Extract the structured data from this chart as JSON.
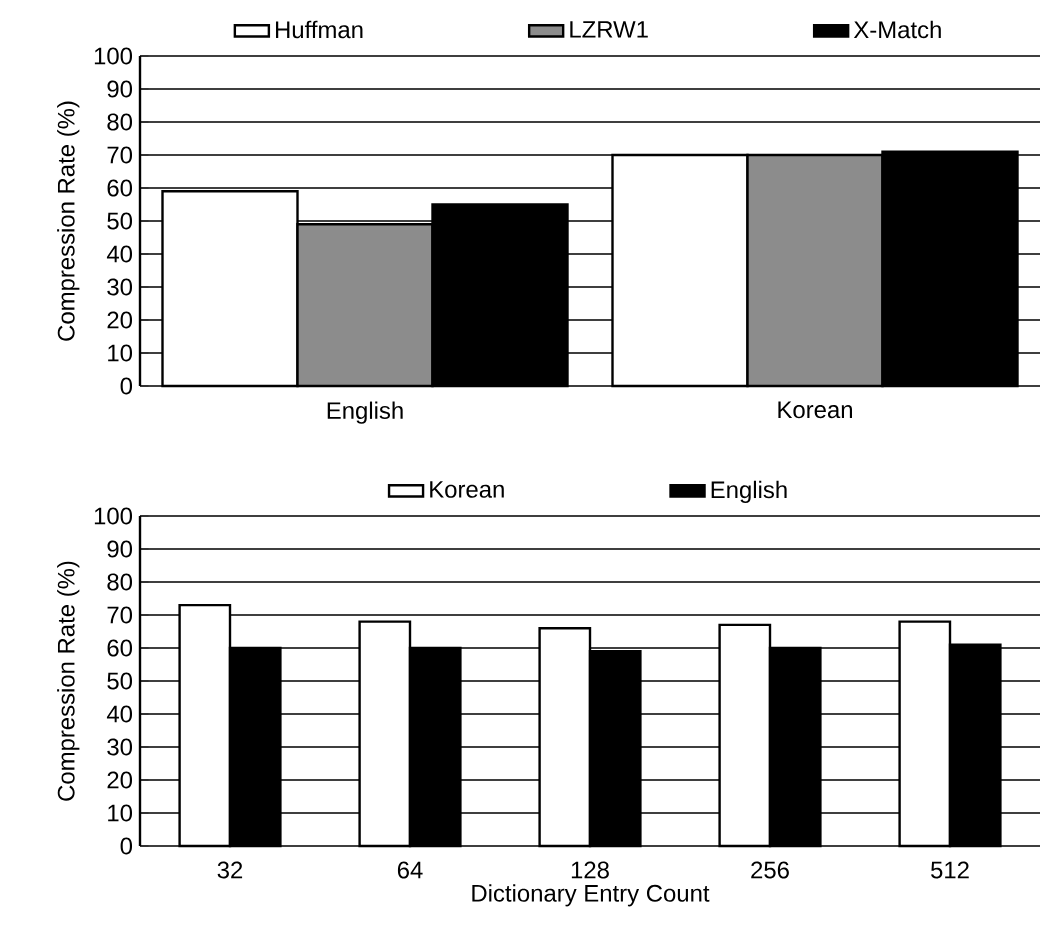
{
  "chart_data": [
    {
      "type": "bar",
      "ylabel": "Compression Rate (%)",
      "categories": [
        "English",
        "Korean"
      ],
      "series": [
        {
          "name": "Huffman",
          "color": "#ffffff",
          "values": [
            59,
            70
          ]
        },
        {
          "name": "LZRW1",
          "color": "#8c8c8c",
          "values": [
            49,
            70
          ]
        },
        {
          "name": "X-Match",
          "color": "#000000",
          "values": [
            55,
            71
          ]
        }
      ],
      "ylim": [
        0,
        100
      ],
      "yticks": [
        0,
        10,
        20,
        30,
        40,
        50,
        60,
        70,
        80,
        90,
        100
      ],
      "grid": "y",
      "legend": "top"
    },
    {
      "type": "bar",
      "ylabel": "Compression Rate (%)",
      "xlabel": "Dictionary Entry Count",
      "categories": [
        "32",
        "64",
        "128",
        "256",
        "512"
      ],
      "series": [
        {
          "name": "Korean",
          "color": "#ffffff",
          "values": [
            73,
            68,
            66,
            67,
            68
          ]
        },
        {
          "name": "English",
          "color": "#000000",
          "values": [
            60,
            60,
            59,
            60,
            61
          ]
        }
      ],
      "ylim": [
        0,
        100
      ],
      "yticks": [
        0,
        10,
        20,
        30,
        40,
        50,
        60,
        70,
        80,
        90,
        100
      ],
      "grid": "y",
      "legend": "top"
    }
  ]
}
